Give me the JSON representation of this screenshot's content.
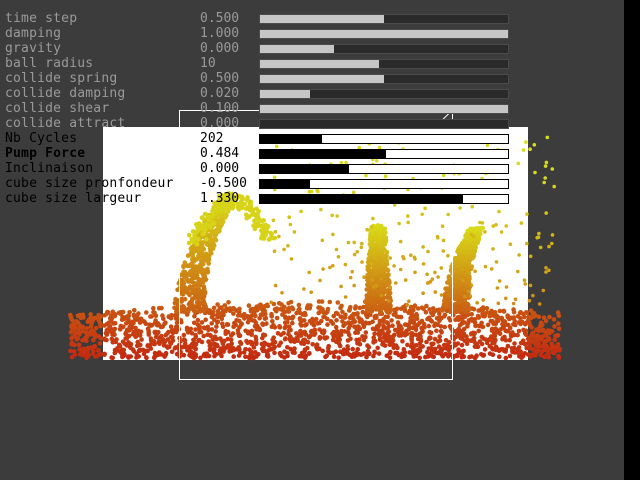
{
  "params": [
    {
      "label": "time step",
      "value": "0.500",
      "level": 0.5,
      "style": "dim"
    },
    {
      "label": "damping",
      "value": "1.000",
      "level": 1.0,
      "style": "dim"
    },
    {
      "label": "gravity",
      "value": "0.000",
      "level": 0.3,
      "style": "dim"
    },
    {
      "label": "ball radius",
      "value": "10",
      "level": 0.48,
      "style": "dim"
    },
    {
      "label": "collide spring",
      "value": "0.500",
      "level": 0.5,
      "style": "dim"
    },
    {
      "label": "collide damping",
      "value": "0.020",
      "level": 0.2,
      "style": "dim"
    },
    {
      "label": "collide shear",
      "value": "0.100",
      "level": 1.0,
      "style": "dim"
    },
    {
      "label": "collide attract",
      "value": "0.000",
      "level": 0.0,
      "style": "dim"
    },
    {
      "label": "Nb Cycles",
      "value": "202",
      "level": 0.25,
      "style": "active"
    },
    {
      "label": "Pump Force",
      "value": "0.484",
      "level": 0.51,
      "style": "active selected"
    },
    {
      "label": "Inclinaison",
      "value": "0.000",
      "level": 0.36,
      "style": "active"
    },
    {
      "label": "cube size pronfondeur",
      "value": "-0.500",
      "level": 0.2,
      "style": "active"
    },
    {
      "label": "cube size largeur",
      "value": "1.330",
      "level": 0.82,
      "style": "active"
    }
  ],
  "colors": {
    "background": "#3c3c3c",
    "sim_panel": "#ffffff",
    "particle_bottom": "#c42a10",
    "particle_top": "#d8dc18"
  }
}
